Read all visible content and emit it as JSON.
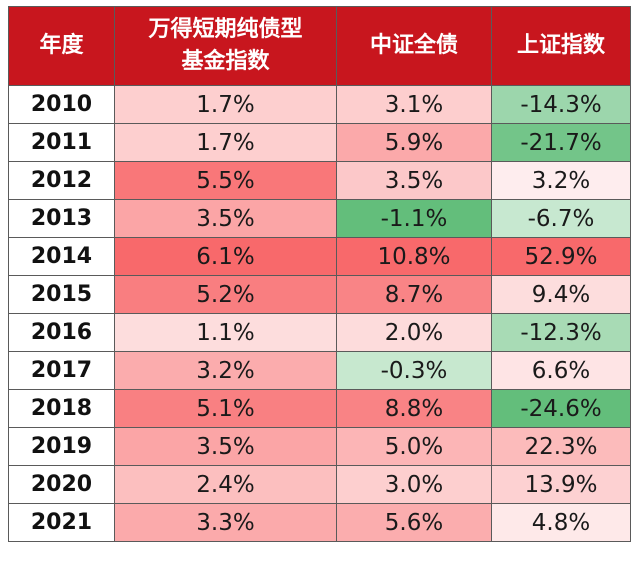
{
  "table": {
    "headers": [
      {
        "line1": "年度",
        "line2": ""
      },
      {
        "line1": "万得短期纯债型",
        "line2": "基金指数"
      },
      {
        "line1": "中证全债",
        "line2": ""
      },
      {
        "line1": "上证指数",
        "line2": ""
      }
    ],
    "rows": [
      {
        "year": "2010",
        "fund": "1.7%",
        "bond": "3.1%",
        "sse": "-14.3%"
      },
      {
        "year": "2011",
        "fund": "1.7%",
        "bond": "5.9%",
        "sse": "-21.7%"
      },
      {
        "year": "2012",
        "fund": "5.5%",
        "bond": "3.5%",
        "sse": "3.2%"
      },
      {
        "year": "2013",
        "fund": "3.5%",
        "bond": "-1.1%",
        "sse": "-6.7%"
      },
      {
        "year": "2014",
        "fund": "6.1%",
        "bond": "10.8%",
        "sse": "52.9%"
      },
      {
        "year": "2015",
        "fund": "5.2%",
        "bond": "8.7%",
        "sse": "9.4%"
      },
      {
        "year": "2016",
        "fund": "1.1%",
        "bond": "2.0%",
        "sse": "-12.3%"
      },
      {
        "year": "2017",
        "fund": "3.2%",
        "bond": "-0.3%",
        "sse": "6.6%"
      },
      {
        "year": "2018",
        "fund": "5.1%",
        "bond": "8.8%",
        "sse": "-24.6%"
      },
      {
        "year": "2019",
        "fund": "3.5%",
        "bond": "5.0%",
        "sse": "22.3%"
      },
      {
        "year": "2020",
        "fund": "2.4%",
        "bond": "3.0%",
        "sse": "13.9%"
      },
      {
        "year": "2021",
        "fund": "3.3%",
        "bond": "5.6%",
        "sse": "4.8%"
      }
    ]
  },
  "colors": {
    "header_bg": "#c8161e",
    "header_text": "#ffffff",
    "positive_scale": "#f8696b",
    "negative_scale": "#63be7b",
    "border": "#5a5a5a"
  }
}
